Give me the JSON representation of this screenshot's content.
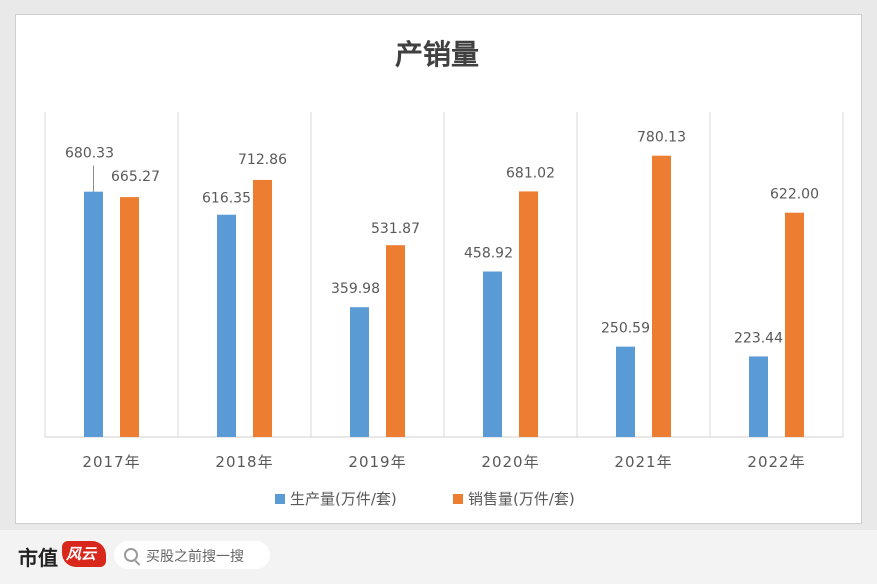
{
  "chart_data": {
    "type": "bar",
    "title": "产销量",
    "categories": [
      "2017年",
      "2018年",
      "2019年",
      "2020年",
      "2021年",
      "2022年"
    ],
    "series": [
      {
        "name": "生产量(万件/套)",
        "color": "#5b9bd5",
        "values": [
          680.33,
          616.35,
          359.98,
          458.92,
          250.59,
          223.44
        ],
        "labels": [
          "680.33",
          "616.35",
          "359.98",
          "458.92",
          "250.59",
          "223.44"
        ]
      },
      {
        "name": "销售量(万件/套)",
        "color": "#ed7d31",
        "values": [
          665.27,
          712.86,
          531.87,
          681.02,
          780.13,
          622.0
        ],
        "labels": [
          "665.27",
          "712.86",
          "531.87",
          "681.02",
          "780.13",
          "622.00"
        ]
      }
    ],
    "ylim": [
      0,
      900
    ],
    "grid": "vertical category separators",
    "legend": "bottom-center"
  },
  "footer": {
    "brand": "市值",
    "brand_mark": "风云",
    "search_placeholder": "买股之前搜一搜"
  },
  "icons": {
    "search": "search-icon",
    "logo": "logo-icon"
  },
  "colors": {
    "background": "#e9e9e9",
    "card": "#ffffff",
    "axis": "#d9d9d9"
  }
}
